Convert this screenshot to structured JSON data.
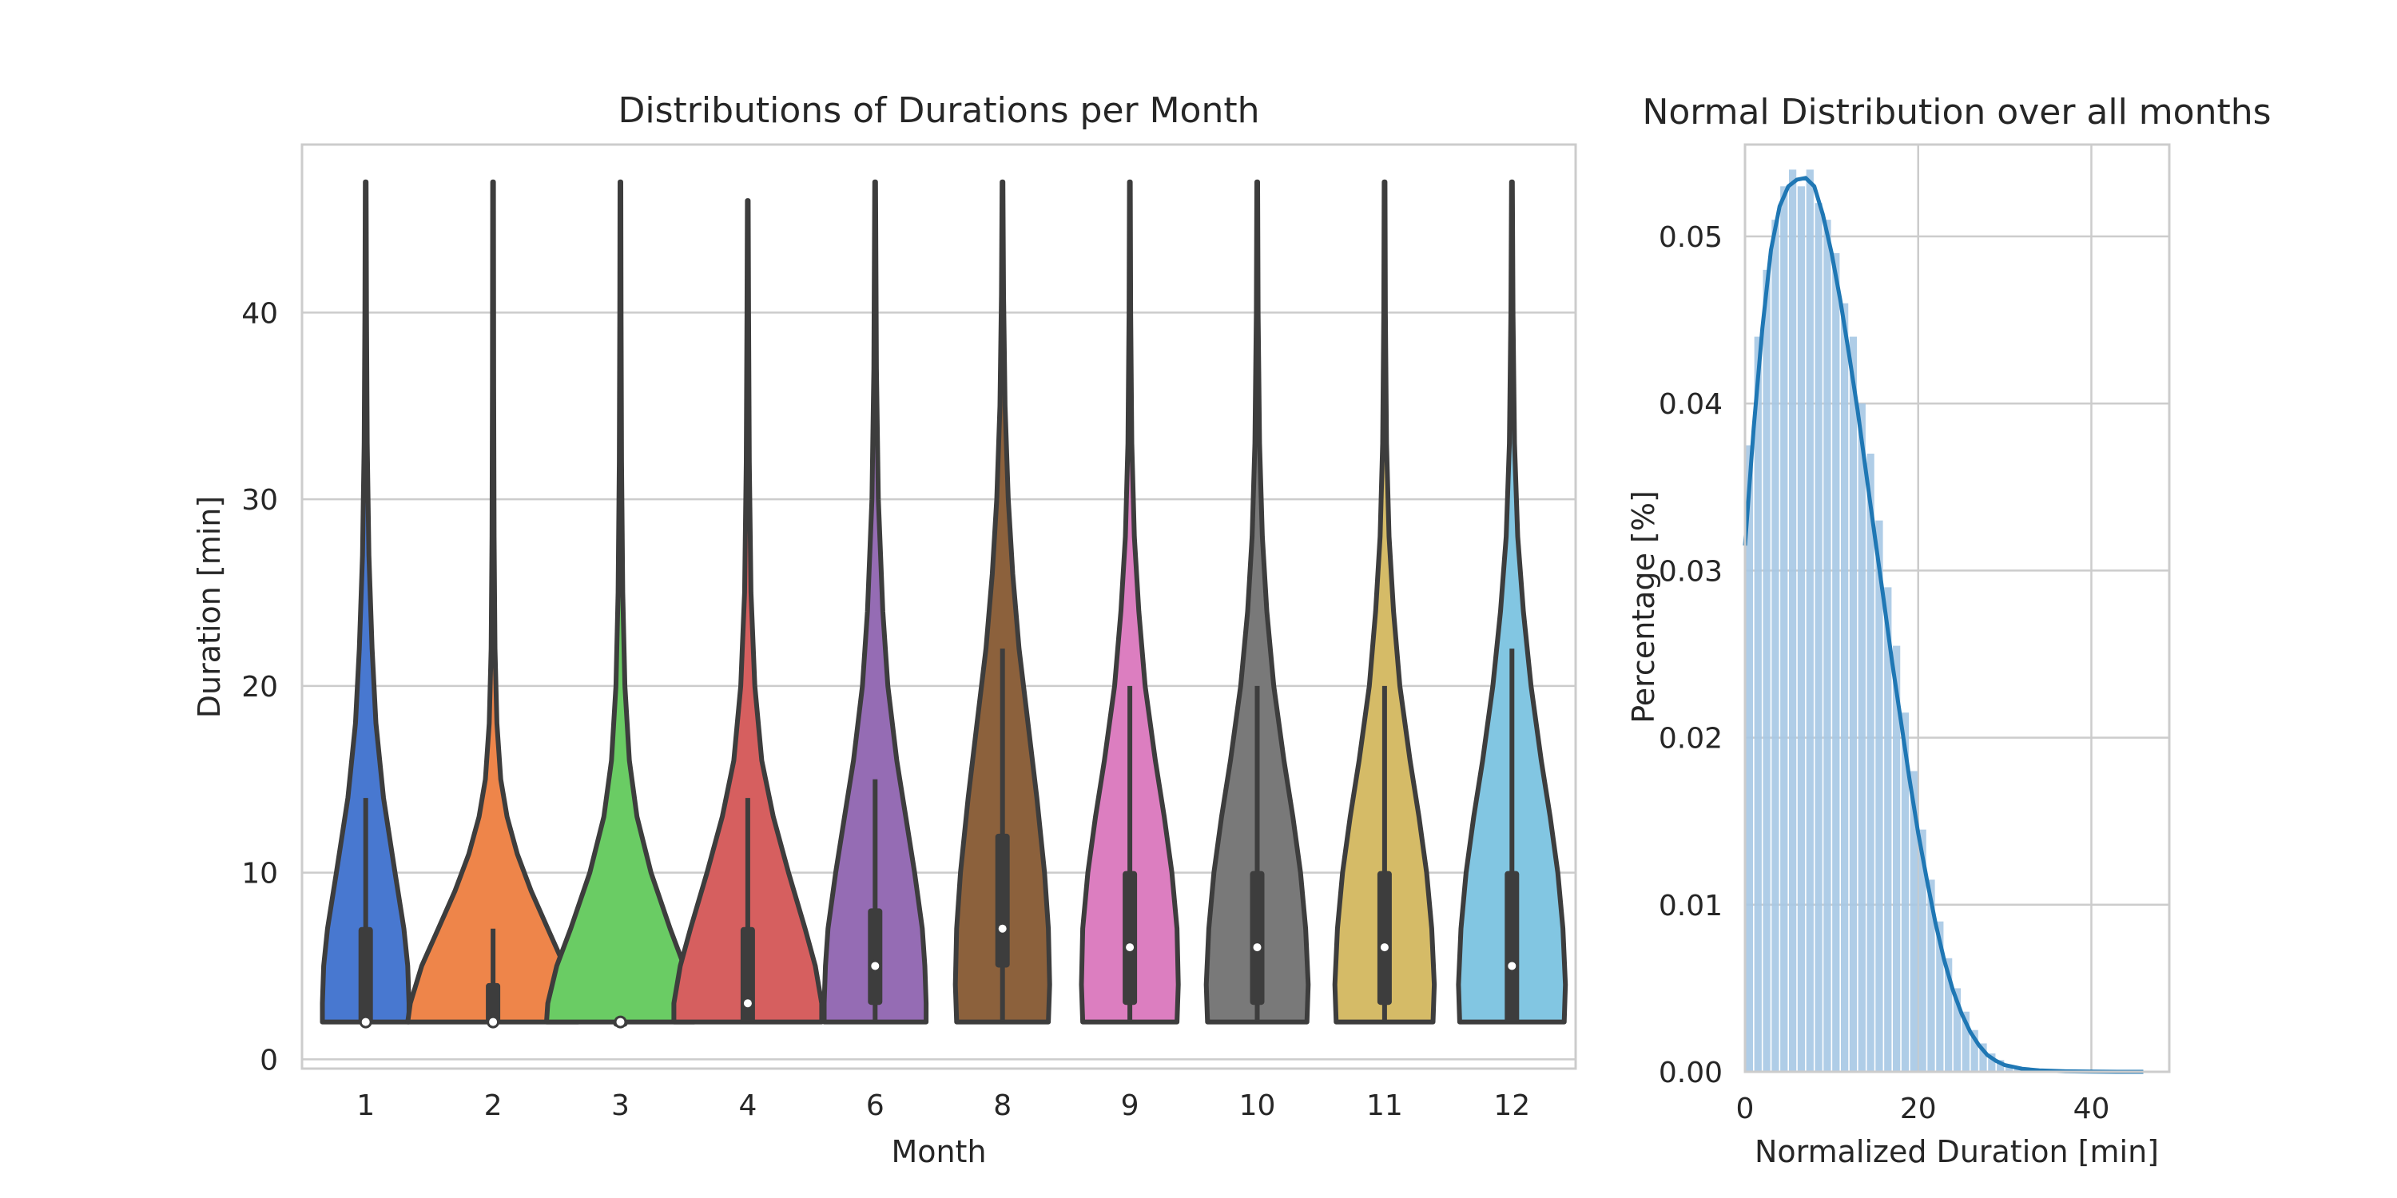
{
  "chart_data": [
    {
      "type": "violin",
      "title": "Distributions of Durations per Month",
      "xlabel": "Month",
      "ylabel": "Duration [min]",
      "categories": [
        "1",
        "2",
        "3",
        "4",
        "6",
        "8",
        "9",
        "10",
        "11",
        "12"
      ],
      "ylim": [
        -0.5,
        49
      ],
      "yticks": [
        0,
        10,
        20,
        30,
        40
      ],
      "grid": true,
      "colors": [
        "#4878d0",
        "#ee854a",
        "#6acc64",
        "#d65f5f",
        "#956cb4",
        "#8c613c",
        "#dc7ec0",
        "#797979",
        "#d5bb67",
        "#82c6e2"
      ],
      "series": [
        {
          "category": "1",
          "min": 2,
          "max": 47,
          "q1": 2,
          "median": 2,
          "q3": 7,
          "whisker_high": 14,
          "widths": [
            [
              2,
              0.34
            ],
            [
              3,
              0.34
            ],
            [
              5,
              0.33
            ],
            [
              7,
              0.3
            ],
            [
              10,
              0.23
            ],
            [
              14,
              0.14
            ],
            [
              18,
              0.08
            ],
            [
              22,
              0.05
            ],
            [
              27,
              0.025
            ],
            [
              33,
              0.012
            ],
            [
              40,
              0.006
            ],
            [
              47,
              0.003
            ]
          ]
        },
        {
          "category": "2",
          "min": 2,
          "max": 47,
          "q1": 2,
          "median": 2,
          "q3": 4,
          "whisker_high": 7,
          "widths": [
            [
              2,
              0.67
            ],
            [
              3,
              0.65
            ],
            [
              5,
              0.56
            ],
            [
              7,
              0.43
            ],
            [
              9,
              0.3
            ],
            [
              11,
              0.19
            ],
            [
              13,
              0.11
            ],
            [
              15,
              0.06
            ],
            [
              18,
              0.03
            ],
            [
              22,
              0.015
            ],
            [
              28,
              0.008
            ],
            [
              36,
              0.005
            ],
            [
              47,
              0.003
            ]
          ]
        },
        {
          "category": "3",
          "min": 2,
          "max": 47,
          "q1": 2,
          "median": 2,
          "q3": 2,
          "whisker_high": 2,
          "widths": [
            [
              2,
              0.58
            ],
            [
              3,
              0.57
            ],
            [
              5,
              0.5
            ],
            [
              7,
              0.39
            ],
            [
              10,
              0.24
            ],
            [
              13,
              0.13
            ],
            [
              16,
              0.07
            ],
            [
              20,
              0.035
            ],
            [
              25,
              0.018
            ],
            [
              32,
              0.009
            ],
            [
              40,
              0.005
            ],
            [
              47,
              0.003
            ]
          ]
        },
        {
          "category": "4",
          "min": 2,
          "max": 46,
          "q1": 2,
          "median": 3,
          "q3": 7,
          "whisker_high": 14,
          "widths": [
            [
              2,
              0.58
            ],
            [
              3,
              0.58
            ],
            [
              5,
              0.53
            ],
            [
              7,
              0.45
            ],
            [
              10,
              0.32
            ],
            [
              13,
              0.2
            ],
            [
              16,
              0.11
            ],
            [
              20,
              0.055
            ],
            [
              25,
              0.025
            ],
            [
              32,
              0.012
            ],
            [
              40,
              0.006
            ],
            [
              46,
              0.003
            ]
          ]
        },
        {
          "category": "6",
          "min": 2,
          "max": 47,
          "q1": 3,
          "median": 5,
          "q3": 8,
          "whisker_high": 15,
          "widths": [
            [
              2,
              0.4
            ],
            [
              3,
              0.4
            ],
            [
              5,
              0.39
            ],
            [
              7,
              0.37
            ],
            [
              10,
              0.31
            ],
            [
              13,
              0.24
            ],
            [
              16,
              0.17
            ],
            [
              20,
              0.1
            ],
            [
              24,
              0.06
            ],
            [
              30,
              0.025
            ],
            [
              37,
              0.01
            ],
            [
              47,
              0.003
            ]
          ]
        },
        {
          "category": "8",
          "min": 2,
          "max": 47,
          "q1": 5,
          "median": 7,
          "q3": 12,
          "whisker_high": 22,
          "widths": [
            [
              2,
              0.36
            ],
            [
              4,
              0.37
            ],
            [
              7,
              0.36
            ],
            [
              10,
              0.33
            ],
            [
              14,
              0.27
            ],
            [
              18,
              0.2
            ],
            [
              22,
              0.13
            ],
            [
              26,
              0.08
            ],
            [
              30,
              0.045
            ],
            [
              35,
              0.02
            ],
            [
              41,
              0.008
            ],
            [
              47,
              0.003
            ]
          ]
        },
        {
          "category": "9",
          "min": 2,
          "max": 47,
          "q1": 3,
          "median": 6,
          "q3": 10,
          "whisker_high": 20,
          "widths": [
            [
              2,
              0.37
            ],
            [
              4,
              0.38
            ],
            [
              7,
              0.37
            ],
            [
              10,
              0.33
            ],
            [
              13,
              0.27
            ],
            [
              16,
              0.2
            ],
            [
              20,
              0.12
            ],
            [
              24,
              0.07
            ],
            [
              28,
              0.035
            ],
            [
              33,
              0.015
            ],
            [
              40,
              0.006
            ],
            [
              47,
              0.003
            ]
          ]
        },
        {
          "category": "10",
          "min": 2,
          "max": 47,
          "q1": 3,
          "median": 6,
          "q3": 10,
          "whisker_high": 20,
          "widths": [
            [
              2,
              0.39
            ],
            [
              4,
              0.4
            ],
            [
              7,
              0.38
            ],
            [
              10,
              0.34
            ],
            [
              13,
              0.28
            ],
            [
              16,
              0.21
            ],
            [
              20,
              0.13
            ],
            [
              24,
              0.075
            ],
            [
              28,
              0.04
            ],
            [
              33,
              0.018
            ],
            [
              40,
              0.007
            ],
            [
              47,
              0.003
            ]
          ]
        },
        {
          "category": "11",
          "min": 2,
          "max": 47,
          "q1": 3,
          "median": 6,
          "q3": 10,
          "whisker_high": 20,
          "widths": [
            [
              2,
              0.38
            ],
            [
              4,
              0.39
            ],
            [
              7,
              0.37
            ],
            [
              10,
              0.33
            ],
            [
              13,
              0.27
            ],
            [
              16,
              0.2
            ],
            [
              20,
              0.12
            ],
            [
              24,
              0.07
            ],
            [
              28,
              0.035
            ],
            [
              33,
              0.015
            ],
            [
              40,
              0.006
            ],
            [
              47,
              0.003
            ]
          ]
        },
        {
          "category": "12",
          "min": 2,
          "max": 47,
          "q1": 2,
          "median": 5,
          "q3": 10,
          "whisker_high": 22,
          "widths": [
            [
              2,
              0.41
            ],
            [
              4,
              0.42
            ],
            [
              7,
              0.4
            ],
            [
              10,
              0.36
            ],
            [
              13,
              0.3
            ],
            [
              16,
              0.23
            ],
            [
              20,
              0.15
            ],
            [
              24,
              0.09
            ],
            [
              28,
              0.045
            ],
            [
              33,
              0.02
            ],
            [
              40,
              0.008
            ],
            [
              47,
              0.003
            ]
          ]
        }
      ]
    },
    {
      "type": "histogram",
      "title": "Normal Distribution over all months",
      "xlabel": "Normalized Duration [min]",
      "ylabel": "Percentage [%]",
      "xlim": [
        0,
        49
      ],
      "ylim": [
        0,
        0.0555
      ],
      "xticks": [
        0,
        20,
        40
      ],
      "yticks": [
        "0.00",
        "0.01",
        "0.02",
        "0.03",
        "0.04",
        "0.05"
      ],
      "grid": true,
      "bar_color": "#a6c8e4",
      "line_color": "#1f77b4",
      "bin_width": 1,
      "bins": [
        {
          "x": 0,
          "y": 0.0375
        },
        {
          "x": 1,
          "y": 0.044
        },
        {
          "x": 2,
          "y": 0.048
        },
        {
          "x": 3,
          "y": 0.051
        },
        {
          "x": 4,
          "y": 0.053
        },
        {
          "x": 5,
          "y": 0.054
        },
        {
          "x": 6,
          "y": 0.053
        },
        {
          "x": 7,
          "y": 0.054
        },
        {
          "x": 8,
          "y": 0.052
        },
        {
          "x": 9,
          "y": 0.051
        },
        {
          "x": 10,
          "y": 0.049
        },
        {
          "x": 11,
          "y": 0.046
        },
        {
          "x": 12,
          "y": 0.044
        },
        {
          "x": 13,
          "y": 0.04
        },
        {
          "x": 14,
          "y": 0.037
        },
        {
          "x": 15,
          "y": 0.033
        },
        {
          "x": 16,
          "y": 0.029
        },
        {
          "x": 17,
          "y": 0.0255
        },
        {
          "x": 18,
          "y": 0.0215
        },
        {
          "x": 19,
          "y": 0.018
        },
        {
          "x": 20,
          "y": 0.0145
        },
        {
          "x": 21,
          "y": 0.0115
        },
        {
          "x": 22,
          "y": 0.009
        },
        {
          "x": 23,
          "y": 0.0068
        },
        {
          "x": 24,
          "y": 0.005
        },
        {
          "x": 25,
          "y": 0.0036
        },
        {
          "x": 26,
          "y": 0.0025
        },
        {
          "x": 27,
          "y": 0.0017
        },
        {
          "x": 28,
          "y": 0.0011
        },
        {
          "x": 29,
          "y": 0.0007
        },
        {
          "x": 30,
          "y": 0.0004
        },
        {
          "x": 31,
          "y": 0.00025
        },
        {
          "x": 32,
          "y": 0.00015
        },
        {
          "x": 33,
          "y": 0.0001
        },
        {
          "x": 34,
          "y": 5e-05
        }
      ],
      "kde": [
        [
          0,
          0.0315
        ],
        [
          1,
          0.0385
        ],
        [
          2,
          0.0445
        ],
        [
          3,
          0.0492
        ],
        [
          4,
          0.0518
        ],
        [
          5,
          0.053
        ],
        [
          6,
          0.0534
        ],
        [
          7,
          0.0535
        ],
        [
          8,
          0.053
        ],
        [
          9,
          0.0513
        ],
        [
          10,
          0.049
        ],
        [
          11,
          0.0462
        ],
        [
          12,
          0.043
        ],
        [
          13,
          0.0396
        ],
        [
          14,
          0.0358
        ],
        [
          15,
          0.032
        ],
        [
          16,
          0.0283
        ],
        [
          17,
          0.0245
        ],
        [
          18,
          0.021
        ],
        [
          19,
          0.0175
        ],
        [
          20,
          0.0143
        ],
        [
          21,
          0.0115
        ],
        [
          22,
          0.0089
        ],
        [
          23,
          0.0067
        ],
        [
          24,
          0.0049
        ],
        [
          25,
          0.0035
        ],
        [
          26,
          0.0024
        ],
        [
          27,
          0.0016
        ],
        [
          28,
          0.001
        ],
        [
          29,
          0.00065
        ],
        [
          30,
          0.0004
        ],
        [
          32,
          0.00018
        ],
        [
          34,
          8e-05
        ],
        [
          37,
          3e-05
        ],
        [
          40,
          1e-05
        ],
        [
          43,
          0
        ],
        [
          46,
          0
        ]
      ]
    }
  ]
}
